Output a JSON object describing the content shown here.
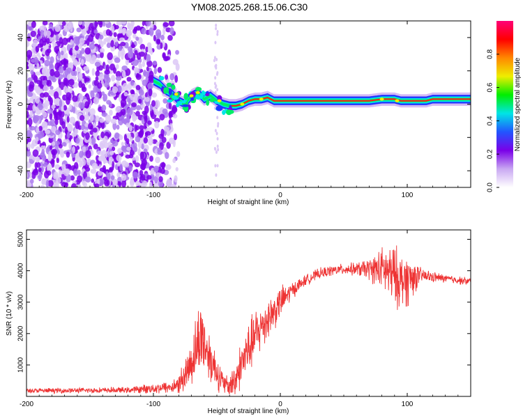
{
  "title": "YM08.2025.268.15.06.C30",
  "chart_data": [
    {
      "type": "heatmap",
      "name": "spectrogram",
      "xlabel": "Height of straight line (km)",
      "ylabel": "Frequency (Hz)",
      "xlim": [
        -200,
        150
      ],
      "ylim": [
        -50,
        50
      ],
      "xticks": [
        -200,
        -100,
        0,
        100
      ],
      "yticks": [
        -40,
        -20,
        0,
        20,
        40
      ],
      "colorbar": {
        "label": "Normalized spectral amplitude",
        "range": [
          0,
          1
        ],
        "ticks": [
          "0.0",
          "0.2",
          "0.4",
          "0.6",
          "0.8"
        ],
        "colors": [
          "#ffffff",
          "#c9a8f2",
          "#7a00e8",
          "#2255ff",
          "#00e5e5",
          "#00ee00",
          "#eeee00",
          "#ff8800",
          "#ff0000",
          "#ff0077"
        ]
      },
      "noise_region_x": [
        -200,
        -80
      ],
      "ridge": {
        "x": [
          -100,
          -95,
          -90,
          -85,
          -80,
          -75,
          -70,
          -65,
          -60,
          -55,
          -50,
          -45,
          -40,
          -35,
          -30,
          -25,
          -20,
          -15,
          -10,
          -5,
          0,
          20,
          40,
          60,
          70,
          80,
          90,
          95,
          100,
          110,
          115,
          120,
          130,
          140,
          150
        ],
        "y": [
          14,
          12,
          8,
          6,
          2,
          0,
          5,
          7,
          3,
          5,
          2,
          0,
          -1,
          -1,
          0,
          2,
          3,
          3,
          4,
          2,
          2,
          2,
          2,
          2,
          2,
          3,
          3,
          2,
          2,
          2,
          2,
          3,
          3,
          3,
          3
        ]
      }
    },
    {
      "type": "line",
      "name": "snr",
      "xlabel": "Height of straight line (km)",
      "ylabel": "SNR (10 * v/v)",
      "xlim": [
        -200,
        150
      ],
      "ylim": [
        0,
        5300
      ],
      "xticks": [
        -200,
        -100,
        0,
        100
      ],
      "yticks": [
        1000,
        2000,
        3000,
        4000,
        5000
      ],
      "color": "#ee3333",
      "envelope": {
        "x": [
          -200,
          -120,
          -85,
          -80,
          -75,
          -70,
          -65,
          -62,
          -60,
          -55,
          -50,
          -45,
          -40,
          -35,
          -30,
          -25,
          -20,
          -15,
          -10,
          -5,
          0,
          10,
          20,
          30,
          40,
          50,
          60,
          70,
          80,
          85,
          90,
          95,
          100,
          105,
          110,
          120,
          130,
          140,
          150
        ],
        "base": [
          180,
          200,
          300,
          400,
          700,
          1100,
          1700,
          2000,
          1700,
          1200,
          800,
          400,
          300,
          600,
          1100,
          1500,
          1900,
          2200,
          2500,
          2700,
          3000,
          3400,
          3700,
          3900,
          4000,
          4050,
          4050,
          4050,
          4050,
          3950,
          3800,
          3700,
          3700,
          3800,
          3850,
          3800,
          3750,
          3700,
          3650
        ],
        "amp": [
          90,
          110,
          250,
          400,
          600,
          900,
          1300,
          1500,
          1200,
          900,
          700,
          400,
          400,
          700,
          900,
          1000,
          1000,
          900,
          800,
          700,
          600,
          300,
          200,
          200,
          200,
          200,
          250,
          400,
          800,
          1000,
          1200,
          1000,
          1000,
          700,
          300,
          200,
          150,
          150,
          150
        ]
      }
    }
  ]
}
